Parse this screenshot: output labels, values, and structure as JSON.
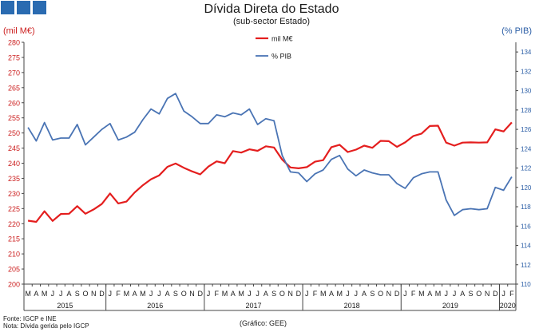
{
  "header": {
    "title": "Dívida Direta do Estado",
    "subtitle": "(sub-sector Estado)",
    "y_left_label": "(mil M€)",
    "y_right_label": "(% PIB)"
  },
  "footer": {
    "source": "Fonte: IGCP e INE",
    "note": "Nota: Dívida gerida pelo IGCP",
    "credit": "(Gráfico: GEE)"
  },
  "chart_data": {
    "type": "line",
    "title": "Dívida Direta do Estado",
    "subtitle": "(sub-sector Estado)",
    "x_months": [
      "M",
      "A",
      "M",
      "J",
      "J",
      "A",
      "S",
      "O",
      "N",
      "D",
      "J",
      "F",
      "M",
      "A",
      "M",
      "J",
      "J",
      "A",
      "S",
      "O",
      "N",
      "D",
      "J",
      "F",
      "M",
      "A",
      "M",
      "J",
      "J",
      "A",
      "S",
      "O",
      "N",
      "D",
      "J",
      "F",
      "M",
      "A",
      "M",
      "J",
      "J",
      "A",
      "S",
      "O",
      "N",
      "D",
      "J",
      "F",
      "M",
      "A",
      "M",
      "J",
      "J",
      "A",
      "S",
      "O",
      "N",
      "D",
      "J",
      "F"
    ],
    "x_years": [
      {
        "label": "2015",
        "start": 0,
        "end": 10
      },
      {
        "label": "2016",
        "start": 10,
        "end": 22
      },
      {
        "label": "2017",
        "start": 22,
        "end": 34
      },
      {
        "label": "2018",
        "start": 34,
        "end": 46
      },
      {
        "label": "2019",
        "start": 46,
        "end": 58
      },
      {
        "label": "2020",
        "start": 58,
        "end": 60
      }
    ],
    "y_left": {
      "label": "(mil M€)",
      "min": 200,
      "max": 280,
      "step": 5
    },
    "y_right": {
      "label": "(% PIB)",
      "min": 110,
      "max": 135,
      "step": 2
    },
    "legend_position": "top-center",
    "series": [
      {
        "name": "mil M€",
        "axis": "left",
        "color": "#e41e1e",
        "values": [
          221.0,
          220.6,
          224.1,
          220.9,
          223.2,
          223.3,
          225.8,
          223.3,
          224.7,
          226.5,
          230.0,
          226.7,
          227.3,
          230.3,
          232.7,
          234.7,
          236.0,
          238.8,
          239.9,
          238.5,
          237.3,
          236.3,
          238.9,
          240.6,
          240.0,
          244.0,
          243.5,
          244.6,
          244.1,
          245.6,
          245.2,
          241.2,
          238.6,
          238.3,
          238.7,
          240.5,
          241.0,
          245.3,
          246.1,
          243.7,
          244.5,
          245.8,
          245.1,
          247.4,
          247.3,
          245.4,
          246.9,
          249.0,
          249.8,
          252.3,
          252.4,
          246.8,
          245.8,
          246.8,
          246.9,
          246.8,
          246.9,
          251.2,
          250.5,
          253.5
        ]
      },
      {
        "name": "% PIB",
        "axis": "right",
        "color": "#4a74b4",
        "values": [
          126.2,
          124.8,
          126.7,
          124.9,
          125.1,
          125.1,
          126.5,
          124.4,
          125.2,
          126.0,
          126.6,
          124.9,
          125.2,
          125.7,
          127.0,
          128.1,
          127.6,
          129.2,
          129.7,
          127.9,
          127.3,
          126.6,
          126.6,
          127.5,
          127.3,
          127.7,
          127.5,
          128.1,
          126.5,
          127.1,
          126.9,
          123.3,
          121.6,
          121.5,
          120.6,
          121.4,
          121.8,
          122.9,
          123.3,
          121.9,
          121.2,
          121.8,
          121.5,
          121.3,
          121.3,
          120.4,
          119.9,
          121.0,
          121.4,
          121.6,
          121.6,
          118.7,
          117.1,
          117.7,
          117.8,
          117.7,
          117.8,
          120.0,
          119.7,
          121.1
        ]
      }
    ]
  }
}
